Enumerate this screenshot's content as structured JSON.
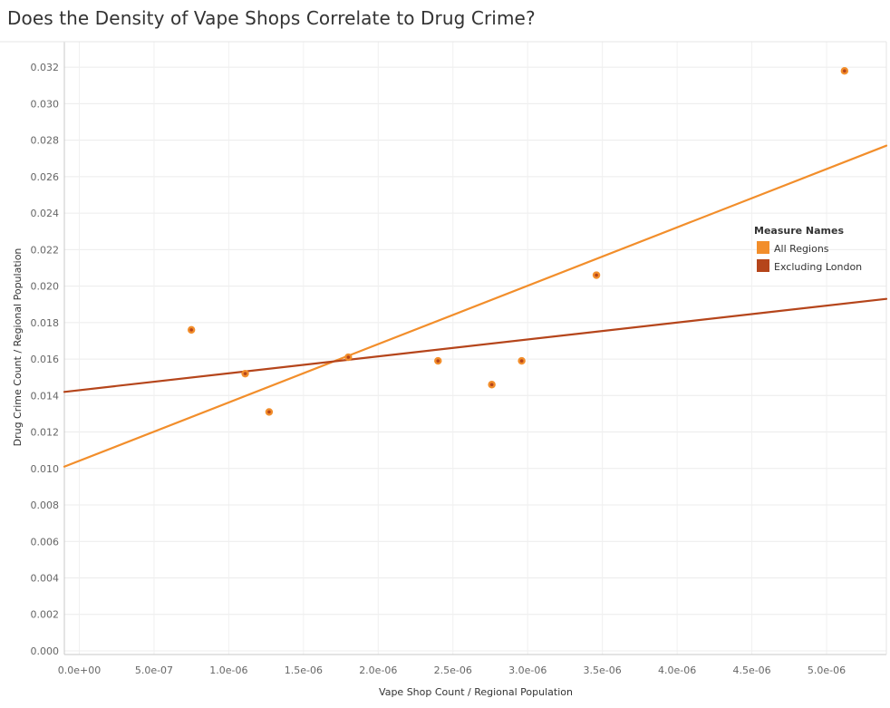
{
  "chart_data": {
    "type": "scatter",
    "title": "Does the Density of Vape Shops Correlate to Drug Crime?",
    "xlabel": "Vape Shop Count / Regional Population",
    "ylabel": "Drug Crime Count / Regional Population",
    "xlim": [
      -1e-07,
      5.4e-06
    ],
    "ylim": [
      -0.0002,
      0.0334
    ],
    "x_ticks": [
      0,
      5e-07,
      1e-06,
      1.5e-06,
      2e-06,
      2.5e-06,
      3e-06,
      3.5e-06,
      4e-06,
      4.5e-06,
      5e-06
    ],
    "x_tick_labels": [
      "0.0e+00",
      "5.0e-07",
      "1.0e-06",
      "1.5e-06",
      "2.0e-06",
      "2.5e-06",
      "3.0e-06",
      "3.5e-06",
      "4.0e-06",
      "4.5e-06",
      "5.0e-06"
    ],
    "y_ticks": [
      0.0,
      0.002,
      0.004,
      0.006,
      0.008,
      0.01,
      0.012,
      0.014,
      0.016,
      0.018,
      0.02,
      0.022,
      0.024,
      0.026,
      0.028,
      0.03,
      0.032
    ],
    "y_tick_labels": [
      "0.000",
      "0.002",
      "0.004",
      "0.006",
      "0.008",
      "0.010",
      "0.012",
      "0.014",
      "0.016",
      "0.018",
      "0.020",
      "0.022",
      "0.024",
      "0.026",
      "0.028",
      "0.030",
      "0.032"
    ],
    "grid": true,
    "points": [
      {
        "x": 7.5e-07,
        "y": 0.0176
      },
      {
        "x": 1.11e-06,
        "y": 0.0152
      },
      {
        "x": 1.27e-06,
        "y": 0.0131
      },
      {
        "x": 1.8e-06,
        "y": 0.0161
      },
      {
        "x": 2.4e-06,
        "y": 0.0159
      },
      {
        "x": 2.76e-06,
        "y": 0.0146
      },
      {
        "x": 2.96e-06,
        "y": 0.0159
      },
      {
        "x": 3.46e-06,
        "y": 0.0206
      },
      {
        "x": 5.12e-06,
        "y": 0.0318
      }
    ],
    "trend_lines": [
      {
        "name": "All Regions",
        "color": "#f28e2b",
        "x": [
          -1e-07,
          5.4e-06
        ],
        "y": [
          0.0101,
          0.0277
        ]
      },
      {
        "name": "Excluding London",
        "color": "#b5451b",
        "x": [
          -1e-07,
          5.4e-06
        ],
        "y": [
          0.0142,
          0.0193
        ]
      }
    ],
    "legend": {
      "title": "Measure Names",
      "position": "right",
      "items": [
        {
          "label": "All Regions",
          "color": "#f28e2b"
        },
        {
          "label": "Excluding London",
          "color": "#b5451b"
        }
      ]
    }
  }
}
